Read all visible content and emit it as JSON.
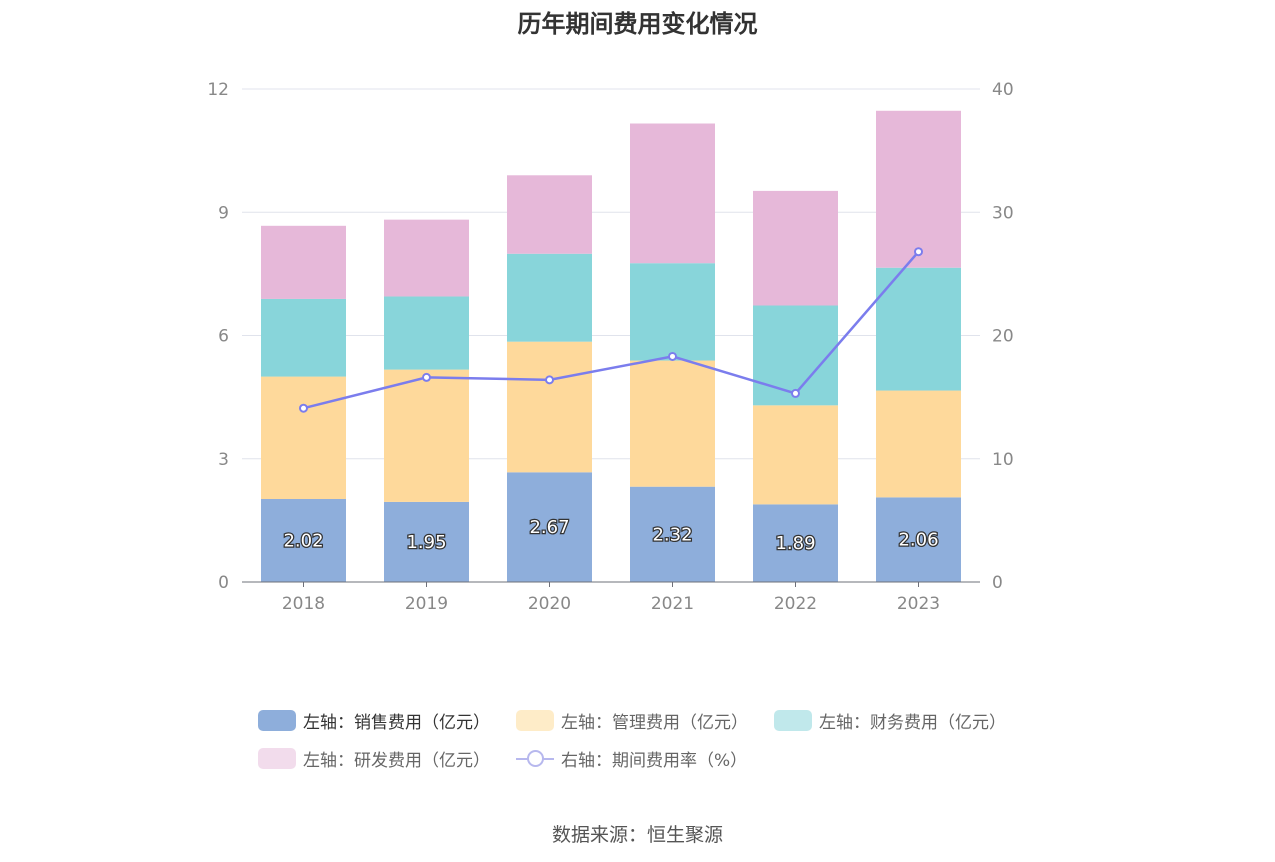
{
  "chart_data": {
    "type": "bar",
    "title": "历年期间费用变化情况",
    "categories": [
      "2018",
      "2019",
      "2020",
      "2021",
      "2022",
      "2023"
    ],
    "stacked": true,
    "series": [
      {
        "name": "左轴：销售费用（亿元）",
        "axis": "left",
        "type": "bar",
        "color": "#8eaedb",
        "values": [
          2.02,
          1.95,
          2.67,
          2.32,
          1.89,
          2.06
        ]
      },
      {
        "name": "左轴：管理费用（亿元）",
        "axis": "left",
        "type": "bar",
        "color": "#fed99b",
        "values": [
          2.98,
          3.22,
          3.18,
          3.07,
          2.41,
          2.6
        ]
      },
      {
        "name": "左轴：财务费用（亿元）",
        "axis": "left",
        "type": "bar",
        "color": "#88d5da",
        "values": [
          1.89,
          1.78,
          2.14,
          2.37,
          2.43,
          2.99
        ]
      },
      {
        "name": "左轴：研发费用（亿元）",
        "axis": "left",
        "type": "bar",
        "color": "#e6b8d9",
        "values": [
          1.78,
          1.87,
          1.91,
          3.4,
          2.79,
          3.82
        ]
      },
      {
        "name": "右轴：期间费用率（%）",
        "axis": "right",
        "type": "line",
        "color": "#7b7ded",
        "values": [
          14.1,
          16.6,
          16.4,
          18.3,
          15.3,
          26.8
        ]
      }
    ],
    "y_left": {
      "ylim": [
        0,
        12
      ],
      "ticks": [
        0,
        3,
        6,
        9,
        12
      ]
    },
    "y_right": {
      "ylim": [
        0,
        40
      ],
      "ticks": [
        0,
        10,
        20,
        30,
        40
      ]
    },
    "data_labels": [
      "2.02",
      "1.95",
      "2.67",
      "2.32",
      "1.89",
      "2.06"
    ],
    "grid": true,
    "legend_position": "bottom"
  },
  "legend": {
    "items": [
      {
        "label": "左轴：销售费用（亿元）",
        "color": "#8eaedb"
      },
      {
        "label": "左轴：管理费用（亿元）",
        "color": "#feecc8"
      },
      {
        "label": "左轴：财务费用（亿元）",
        "color": "#c0e8eb"
      },
      {
        "label": "左轴：研发费用（亿元）",
        "color": "#f2dcec"
      },
      {
        "label": "右轴：期间费用率（%）",
        "color": "#b7b8ee"
      }
    ]
  },
  "source": "数据来源：恒生聚源"
}
